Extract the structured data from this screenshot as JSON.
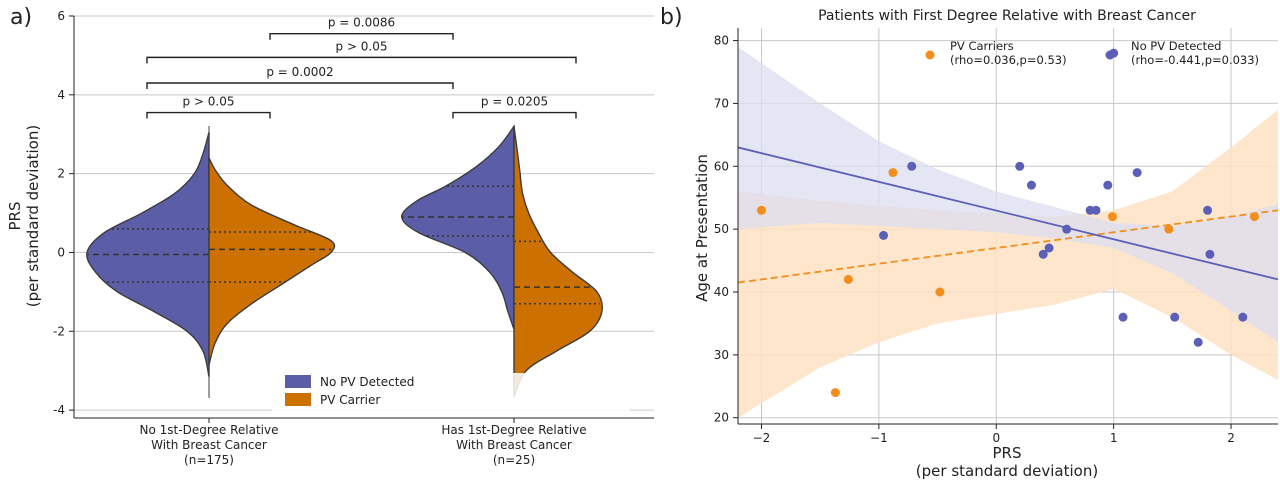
{
  "panel_a": {
    "letter": "a)"
  },
  "panel_b": {
    "letter": "b)"
  },
  "chart_data": [
    {
      "type": "violin",
      "ylabel_line1": "PRS",
      "ylabel_line2": "(per standard deviation)",
      "ylim": [
        -4.2,
        6
      ],
      "yticks": [
        -4,
        -2,
        0,
        2,
        4,
        6
      ],
      "grid": "horizontal",
      "categories": [
        {
          "line1": "No 1st-Degree Relative",
          "line2": "With Breast Cancer",
          "line3": "(n=175)"
        },
        {
          "line1": "Has 1st-Degree Relative",
          "line2": "With Breast Cancer",
          "line3": "(n=25)"
        }
      ],
      "series": [
        {
          "name": "No PV Detected",
          "color": "#5b5ea6",
          "side": "left",
          "groups": [
            {
              "min": -3.15,
              "max": 3.05,
              "median": -0.05,
              "q1": -0.75,
              "q3": 0.6,
              "profile": [
                [
                  -3.15,
                  0.0
                ],
                [
                  -2.5,
                  0.05
                ],
                [
                  -2.0,
                  0.18
                ],
                [
                  -1.5,
                  0.45
                ],
                [
                  -1.0,
                  0.75
                ],
                [
                  -0.5,
                  0.93
                ],
                [
                  0.0,
                  1.0
                ],
                [
                  0.5,
                  0.86
                ],
                [
                  1.0,
                  0.55
                ],
                [
                  1.5,
                  0.28
                ],
                [
                  2.0,
                  0.12
                ],
                [
                  2.5,
                  0.05
                ],
                [
                  3.05,
                  0.0
                ]
              ]
            },
            {
              "min": -1.95,
              "max": 3.2,
              "median": 0.9,
              "q1": 0.42,
              "q3": 1.68,
              "profile": [
                [
                  -1.95,
                  0.0
                ],
                [
                  -1.5,
                  0.05
                ],
                [
                  -1.0,
                  0.1
                ],
                [
                  -0.5,
                  0.2
                ],
                [
                  0.0,
                  0.4
                ],
                [
                  0.5,
                  0.78
                ],
                [
                  0.9,
                  0.92
                ],
                [
                  1.3,
                  0.8
                ],
                [
                  1.7,
                  0.55
                ],
                [
                  2.2,
                  0.3
                ],
                [
                  2.7,
                  0.12
                ],
                [
                  3.2,
                  0.0
                ]
              ]
            }
          ]
        },
        {
          "name": "PV Carrier",
          "color": "#cc7000",
          "side": "right",
          "groups": [
            {
              "min": -2.85,
              "max": 2.4,
              "median": 0.08,
              "q1": -0.75,
              "q3": 0.52,
              "profile": [
                [
                  -2.85,
                  0.0
                ],
                [
                  -2.3,
                  0.05
                ],
                [
                  -1.8,
                  0.15
                ],
                [
                  -1.3,
                  0.35
                ],
                [
                  -0.8,
                  0.6
                ],
                [
                  -0.3,
                  0.85
                ],
                [
                  0.0,
                  1.0
                ],
                [
                  0.3,
                  1.0
                ],
                [
                  0.7,
                  0.7
                ],
                [
                  1.2,
                  0.35
                ],
                [
                  1.7,
                  0.15
                ],
                [
                  2.1,
                  0.05
                ],
                [
                  2.4,
                  0.0
                ]
              ]
            },
            {
              "min": -3.65,
              "max": 3.2,
              "median": -0.88,
              "q1": -1.3,
              "q3": 0.28,
              "profile": [
                [
                  -3.65,
                  0.0
                ],
                [
                  -3.0,
                  0.1
                ],
                [
                  -2.5,
                  0.35
                ],
                [
                  -2.0,
                  0.62
                ],
                [
                  -1.5,
                  0.72
                ],
                [
                  -1.0,
                  0.68
                ],
                [
                  -0.5,
                  0.48
                ],
                [
                  0.0,
                  0.3
                ],
                [
                  0.5,
                  0.2
                ],
                [
                  1.0,
                  0.12
                ],
                [
                  1.5,
                  0.07
                ],
                [
                  2.0,
                  0.05
                ],
                [
                  2.5,
                  0.03
                ],
                [
                  3.2,
                  0.0
                ]
              ]
            }
          ]
        }
      ],
      "comparisons": [
        {
          "label": "p = 0.0086",
          "from": "0R",
          "to": "1L",
          "y": 5.55
        },
        {
          "label": "p > 0.05",
          "from": "0L",
          "to": "1R",
          "y": 4.95
        },
        {
          "label": "p = 0.0002",
          "from": "0L",
          "to": "1L",
          "y": 4.3
        },
        {
          "label": "p > 0.05",
          "from": "0L",
          "to": "0R",
          "y": 3.55
        },
        {
          "label": "p = 0.0205",
          "from": "1L",
          "to": "1R",
          "y": 3.55
        }
      ],
      "legend": {
        "placement": "lower-center",
        "entries": [
          "No PV Detected",
          "PV Carrier"
        ]
      }
    },
    {
      "type": "scatter",
      "title": "Patients with First Degree Relative with Breast Cancer",
      "xlabel_line1": "PRS",
      "xlabel_line2": "(per standard deviation)",
      "ylabel": "Age at Presentation",
      "xlim": [
        -2.2,
        2.4
      ],
      "ylim": [
        19,
        82
      ],
      "xticks": [
        -2,
        -1,
        0,
        1,
        2
      ],
      "yticks": [
        20,
        30,
        40,
        50,
        60,
        70,
        80
      ],
      "grid": true,
      "series": [
        {
          "name": "PV Carriers",
          "stats": "(rho=0.036,p=0.53)",
          "color": "#f28e1c",
          "band_color": "#fde2c2",
          "line_style": "dashed",
          "points": [
            [
              -2.0,
              53
            ],
            [
              -1.37,
              24
            ],
            [
              -1.26,
              42
            ],
            [
              -0.88,
              59
            ],
            [
              -0.48,
              40
            ],
            [
              0.99,
              52
            ],
            [
              1.47,
              50
            ],
            [
              2.2,
              52
            ]
          ],
          "fit": {
            "x": [
              -2.2,
              2.4
            ],
            "y": [
              41.5,
              53
            ]
          },
          "band": {
            "upper": [
              [
                -2.2,
                56
              ],
              [
                -1.5,
                54.5
              ],
              [
                -0.5,
                53
              ],
              [
                0,
                52.5
              ],
              [
                0.5,
                52
              ],
              [
                1.0,
                53
              ],
              [
                1.5,
                56
              ],
              [
                2.0,
                63
              ],
              [
                2.4,
                69
              ]
            ],
            "lower": [
              [
                -2.2,
                20
              ],
              [
                -1.5,
                28
              ],
              [
                -1.0,
                32
              ],
              [
                -0.5,
                35
              ],
              [
                0,
                36.5
              ],
              [
                0.5,
                38
              ],
              [
                1.0,
                40.5
              ],
              [
                1.5,
                36
              ],
              [
                2.0,
                30
              ],
              [
                2.4,
                26
              ]
            ]
          }
        },
        {
          "name": "No PV Detected",
          "stats": "(rho=-0.441,p=0.033)",
          "color": "#5b5fb8",
          "band_color": "#dcdef0",
          "line_style": "solid",
          "points": [
            [
              -0.96,
              49
            ],
            [
              -0.72,
              60
            ],
            [
              0.2,
              60
            ],
            [
              0.3,
              57
            ],
            [
              0.4,
              46
            ],
            [
              0.45,
              47
            ],
            [
              0.6,
              50
            ],
            [
              0.8,
              53
            ],
            [
              0.85,
              53
            ],
            [
              0.95,
              57
            ],
            [
              1.0,
              78
            ],
            [
              1.08,
              36
            ],
            [
              1.2,
              59
            ],
            [
              1.52,
              36
            ],
            [
              1.72,
              32
            ],
            [
              1.8,
              53
            ],
            [
              1.82,
              46
            ],
            [
              2.1,
              36
            ]
          ],
          "fit": {
            "x": [
              -2.2,
              2.4
            ],
            "y": [
              63,
              42
            ]
          },
          "band": {
            "upper": [
              [
                -2.2,
                79
              ],
              [
                -1.5,
                70
              ],
              [
                -1.0,
                64
              ],
              [
                -0.5,
                59.5
              ],
              [
                0,
                56
              ],
              [
                0.5,
                53.5
              ],
              [
                1.0,
                51
              ],
              [
                1.5,
                50.5
              ],
              [
                2.0,
                52
              ],
              [
                2.4,
                54
              ]
            ],
            "lower": [
              [
                -2.2,
                50
              ],
              [
                -1.5,
                51
              ],
              [
                -1.0,
                50.5
              ],
              [
                -0.5,
                50
              ],
              [
                0,
                49.5
              ],
              [
                0.5,
                48.5
              ],
              [
                1.0,
                47
              ],
              [
                1.5,
                43
              ],
              [
                2.0,
                37
              ],
              [
                2.4,
                32
              ]
            ]
          }
        }
      ],
      "legend": {
        "placement": "top-right"
      }
    }
  ]
}
